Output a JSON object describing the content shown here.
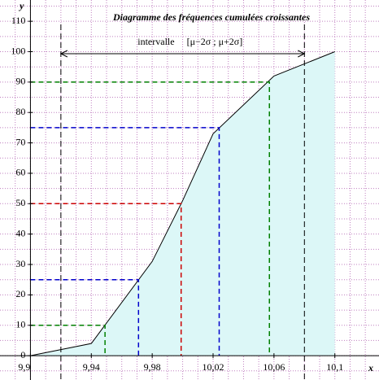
{
  "chart_data": {
    "type": "line",
    "title": "Diagramme des fréquences cumulées croissantes",
    "x_label": "x",
    "y_label": "y",
    "x": [
      9.9,
      9.94,
      9.98,
      10.0,
      10.02,
      10.06,
      10.1
    ],
    "values": [
      0,
      4,
      31,
      51,
      73,
      92,
      100
    ],
    "color": "#000000",
    "fill": "#dcf7f7",
    "xlim": [
      9.88,
      10.129
    ],
    "ylim": [
      -8,
      117
    ],
    "xticks": [
      {
        "value": 9.9,
        "label": "9,9"
      },
      {
        "value": 9.94,
        "label": "9,94"
      },
      {
        "value": 9.98,
        "label": "9,98"
      },
      {
        "value": 10.02,
        "label": "10,02"
      },
      {
        "value": 10.06,
        "label": "10,06"
      },
      {
        "value": 10.1,
        "label": "10,1"
      }
    ],
    "yticks": [
      0,
      10,
      20,
      30,
      40,
      50,
      60,
      70,
      80,
      90,
      100,
      110
    ],
    "grid": true,
    "grid_step": [
      0.01,
      5
    ],
    "guides": [
      {
        "y": 10,
        "x": 9.949,
        "color": "#008000"
      },
      {
        "y": 25,
        "x": 9.971,
        "color": "#0000cc"
      },
      {
        "y": 50,
        "x": 9.999,
        "color": "#cc0000"
      },
      {
        "y": 75,
        "x": 10.024,
        "color": "#0000cc"
      },
      {
        "y": 90,
        "x": 10.057,
        "color": "#008000"
      }
    ],
    "interval": {
      "bounds": [
        9.92,
        10.08
      ],
      "label": "intervalle",
      "formula": "[μ−2σ ; μ+2σ]"
    }
  }
}
